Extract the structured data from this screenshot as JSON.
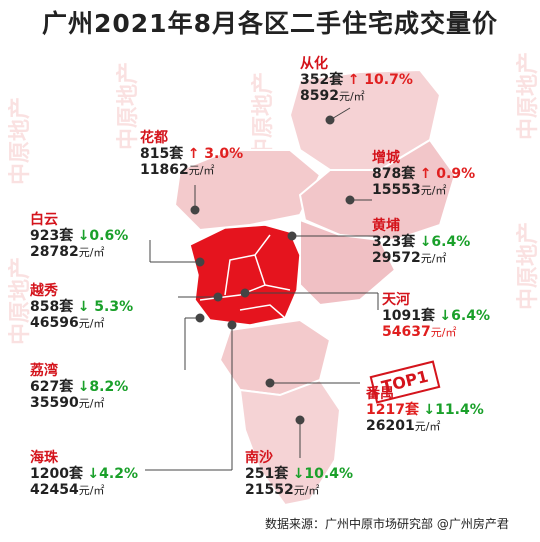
{
  "title": "广州2021年8月各区二手住宅成交量价",
  "watermark": "中原地产",
  "top_badge": "TOP1",
  "source": "数据来源：广州中原市场研究部 @广州房产君",
  "districts": [
    {
      "name": "从化",
      "units": "352套",
      "arrow": "↑",
      "change": "10.7%",
      "direction": "up",
      "price": "8592",
      "price_unit": "元/㎡"
    },
    {
      "name": "花都",
      "units": "815套",
      "arrow": "↑",
      "change": "3.0%",
      "direction": "up",
      "price": "11862",
      "price_unit": "元/㎡"
    },
    {
      "name": "增城",
      "units": "878套",
      "arrow": "↑",
      "change": "0.9%",
      "direction": "up",
      "price": "15553",
      "price_unit": "元/㎡"
    },
    {
      "name": "白云",
      "units": "923套",
      "arrow": "↓",
      "change": "0.6%",
      "direction": "down",
      "price": "28782",
      "price_unit": "元/㎡"
    },
    {
      "name": "黄埔",
      "units": "323套",
      "arrow": "↓",
      "change": "6.4%",
      "direction": "down",
      "price": "29572",
      "price_unit": "元/㎡"
    },
    {
      "name": "越秀",
      "units": "858套",
      "arrow": "↓",
      "change": "5.3%",
      "direction": "down",
      "price": "46596",
      "price_unit": "元/㎡"
    },
    {
      "name": "天河",
      "units": "1091套",
      "arrow": "↓",
      "change": "6.4%",
      "direction": "down",
      "price": "54637",
      "price_unit": "元/㎡"
    },
    {
      "name": "荔湾",
      "units": "627套",
      "arrow": "↓",
      "change": "8.2%",
      "direction": "down",
      "price": "35590",
      "price_unit": "元/㎡"
    },
    {
      "name": "番禺",
      "units": "1217套",
      "arrow": "↓",
      "change": "11.4%",
      "direction": "down",
      "price": "26201",
      "price_unit": "元/㎡"
    },
    {
      "name": "海珠",
      "units": "1200套",
      "arrow": "↓",
      "change": "4.2%",
      "direction": "down",
      "price": "42454",
      "price_unit": "元/㎡"
    },
    {
      "name": "南沙",
      "units": "251套",
      "arrow": "↓",
      "change": "10.4%",
      "direction": "down",
      "price": "21552",
      "price_unit": "元/㎡"
    }
  ],
  "colors": {
    "region": "#f3c9cb",
    "urban": "#e5141e",
    "up": "#e02020",
    "down": "#1aa02a",
    "name": "#d4141c"
  }
}
